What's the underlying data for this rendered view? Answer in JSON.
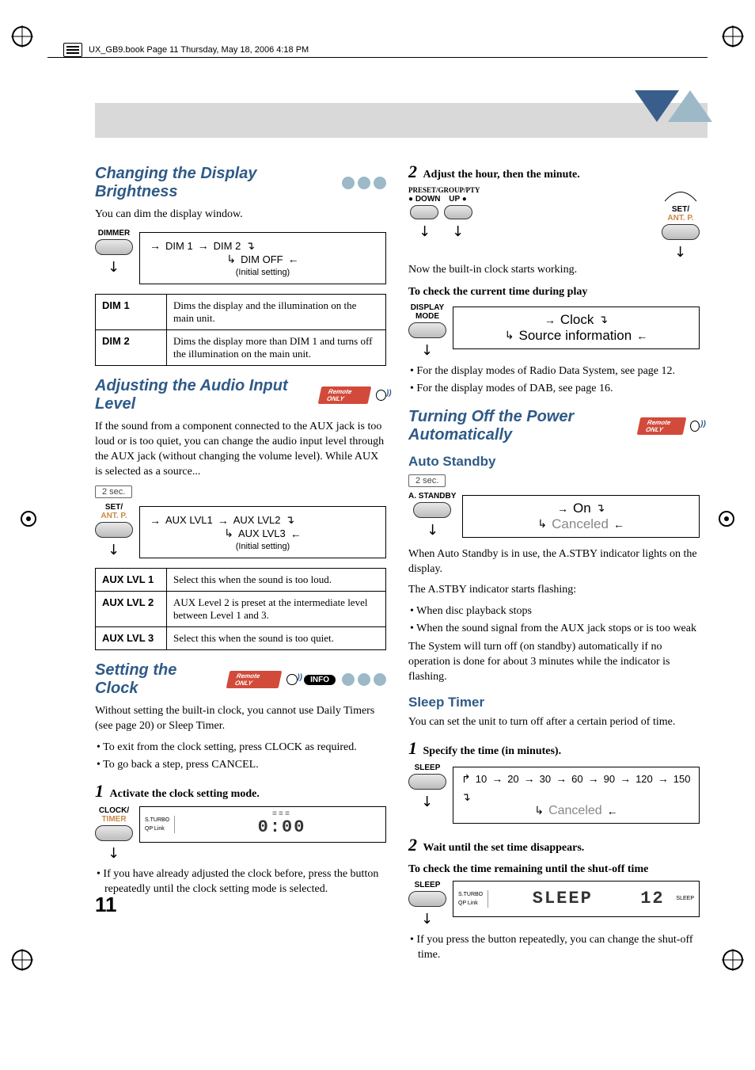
{
  "meta": {
    "book_header": "UX_GB9.book  Page 11  Thursday, May 18, 2006  4:18 PM",
    "page_number": "11"
  },
  "badges": {
    "remote": "Remote ONLY",
    "info": "INFO"
  },
  "labels": {
    "dimmer": "DIMMER",
    "set_antp": "SET/",
    "set_antp2": "ANT. P.",
    "clock_timer1": "CLOCK/",
    "clock_timer2": "TIMER",
    "preset": "PRESET/GROUP/PTY",
    "down": "DOWN",
    "up": "UP",
    "display_mode": "DISPLAY\nMODE",
    "astandby": "A. STANDBY",
    "sleep": "SLEEP",
    "two_sec": "2 sec.",
    "initial": "(Initial setting)",
    "sturbo": "S.TURBO",
    "qplink": "QP Link",
    "sleep_small": "SLEEP"
  },
  "left": {
    "s1": {
      "title": "Changing the Display Brightness",
      "intro": "You can dim the display window.",
      "flow1": "DIM 1",
      "flow2": "DIM 2",
      "flow3": "DIM OFF",
      "table": {
        "r1h": "DIM 1",
        "r1d": "Dims the display and the illumination on the main unit.",
        "r2h": "DIM 2",
        "r2d": "Dims the display more than DIM 1 and turns off the illumination on the main unit."
      }
    },
    "s2": {
      "title": "Adjusting the Audio Input Level",
      "intro": "If the sound from a component connected to the AUX jack is too loud or is too quiet, you can change the audio input level through the AUX jack (without changing the volume level). While AUX is selected as a source...",
      "flow1": "AUX LVL1",
      "flow2": "AUX LVL2",
      "flow3": "AUX LVL3",
      "table": {
        "r1h": "AUX LVL 1",
        "r1d": "Select this when the sound is too loud.",
        "r2h": "AUX LVL 2",
        "r2d": "AUX Level 2 is preset at the intermediate level between Level 1 and 3.",
        "r3h": "AUX LVL 3",
        "r3d": "Select this when the sound is too quiet."
      }
    },
    "s3": {
      "title": "Setting the Clock",
      "intro": "Without setting the built-in clock, you cannot use Daily Timers (see page 20) or Sleep Timer.",
      "b1": "To exit from the clock setting, press CLOCK as required.",
      "b2": "To go back a step, press CANCEL.",
      "step1": "Activate the clock setting mode.",
      "lcd": "0:00",
      "note": "If you have already adjusted the clock before, press the button repeatedly until the clock setting mode is selected."
    }
  },
  "right": {
    "step2": "Adjust the hour, then the minute.",
    "now": "Now the built-in clock starts working.",
    "check_play": "To check the current time during play",
    "clock": "Clock",
    "source_info": "Source information",
    "b_rds": "For the display modes of Radio Data System, see page 12.",
    "b_dab": "For the display modes of DAB, see page 16.",
    "s4": {
      "title": "Turning Off the Power Automatically"
    },
    "auto": {
      "title": "Auto Standby",
      "on": "On",
      "canceled": "Canceled",
      "p1": "When Auto Standby is in use, the A.STBY indicator lights on the display.",
      "p2": "The A.STBY indicator starts flashing:",
      "b1": "When disc playback stops",
      "b2": "When the sound signal from the AUX jack stops or is too weak",
      "p3": "The System will turn off (on standby) automatically if no operation is done for about 3 minutes while the indicator is flashing."
    },
    "sleep": {
      "title": "Sleep Timer",
      "intro": "You can set the unit to turn off after a certain period of time.",
      "step1": "Specify the time (in minutes).",
      "seq": [
        "10",
        "20",
        "30",
        "60",
        "90",
        "120",
        "150"
      ],
      "canceled": "Canceled",
      "step2": "Wait until the set time disappears.",
      "check": "To check the time remaining until the shut-off time",
      "lcd_text": "SLEEP",
      "lcd_num": "12",
      "note": "If you press the button repeatedly, you can change the shut-off time."
    }
  }
}
